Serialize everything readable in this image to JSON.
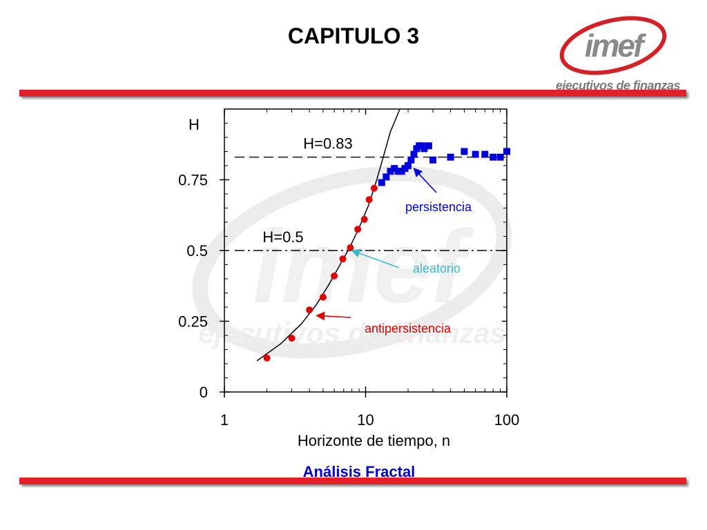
{
  "slide": {
    "title": "CAPITULO 3",
    "footer": "Análisis Fractal"
  },
  "logo": {
    "word": "imef",
    "tagline": "ejecutivos de finanzas",
    "ring_color": "#d42027",
    "text_color": "#8a8a8a"
  },
  "colors": {
    "bar": "#e3202a",
    "persistence": "#0000dd",
    "antipersistence": "#dd0000",
    "random": "#33bbcc",
    "footer": "#0000cc"
  },
  "chart_data": {
    "type": "scatter",
    "title": "",
    "xlabel": "Horizonte de tiempo, n",
    "ylabel": "H",
    "x_scale": "log",
    "xlim": [
      1,
      100
    ],
    "ylim": [
      0,
      1.0
    ],
    "x_ticks": [
      1,
      10,
      100
    ],
    "x_tick_labels": [
      "1",
      "10",
      "100"
    ],
    "y_ticks": [
      0,
      0.25,
      0.5,
      0.75
    ],
    "y_tick_labels": [
      "0",
      "0.25",
      "0.5",
      "0.75"
    ],
    "grid": false,
    "reference_lines": [
      {
        "label": "H=0.83",
        "y": 0.83,
        "style": "dashed"
      },
      {
        "label": "H=0.5",
        "y": 0.5,
        "style": "dash-dot"
      }
    ],
    "curve": {
      "x": [
        1.7,
        2.5,
        3.5,
        4.5,
        5.5,
        6.6,
        7.7,
        9.0,
        10.5,
        12.0,
        13.5,
        15.0,
        17.5
      ],
      "y": [
        0.11,
        0.17,
        0.24,
        0.31,
        0.38,
        0.45,
        0.51,
        0.58,
        0.66,
        0.75,
        0.84,
        0.92,
        1.0
      ]
    },
    "series": [
      {
        "color": "#dd0000",
        "marker": "circle",
        "x": [
          2.0,
          3.0,
          4.0,
          5.0,
          6.0,
          6.9,
          7.8,
          8.8,
          9.8,
          10.6,
          11.5
        ],
        "y": [
          0.12,
          0.19,
          0.29,
          0.335,
          0.41,
          0.47,
          0.51,
          0.575,
          0.61,
          0.68,
          0.72
        ]
      },
      {
        "color": "#0000dd",
        "marker": "square",
        "x": [
          13.0,
          14.0,
          15.0,
          16.0,
          17.0,
          18.0,
          19.0,
          20.0,
          21.0,
          22.0,
          23.0,
          24.0,
          25.0,
          26.0,
          28.0,
          30.0,
          40.0,
          50.0,
          60.0,
          70.0,
          80.0,
          90.0,
          100.0
        ],
        "y": [
          0.74,
          0.76,
          0.78,
          0.79,
          0.78,
          0.78,
          0.79,
          0.8,
          0.82,
          0.84,
          0.86,
          0.87,
          0.87,
          0.86,
          0.87,
          0.82,
          0.83,
          0.85,
          0.84,
          0.84,
          0.83,
          0.83,
          0.85
        ]
      }
    ],
    "annotations": [
      {
        "text": "persistencia",
        "color": "#0000dd",
        "points_to": {
          "x": 22.0,
          "y": 0.79
        }
      },
      {
        "text": "aleatorio",
        "color": "#33bbcc",
        "points_to": {
          "x": 8.0,
          "y": 0.5
        }
      },
      {
        "text": "antipersistencia",
        "color": "#dd0000",
        "points_to": {
          "x": 4.5,
          "y": 0.27
        }
      }
    ]
  }
}
